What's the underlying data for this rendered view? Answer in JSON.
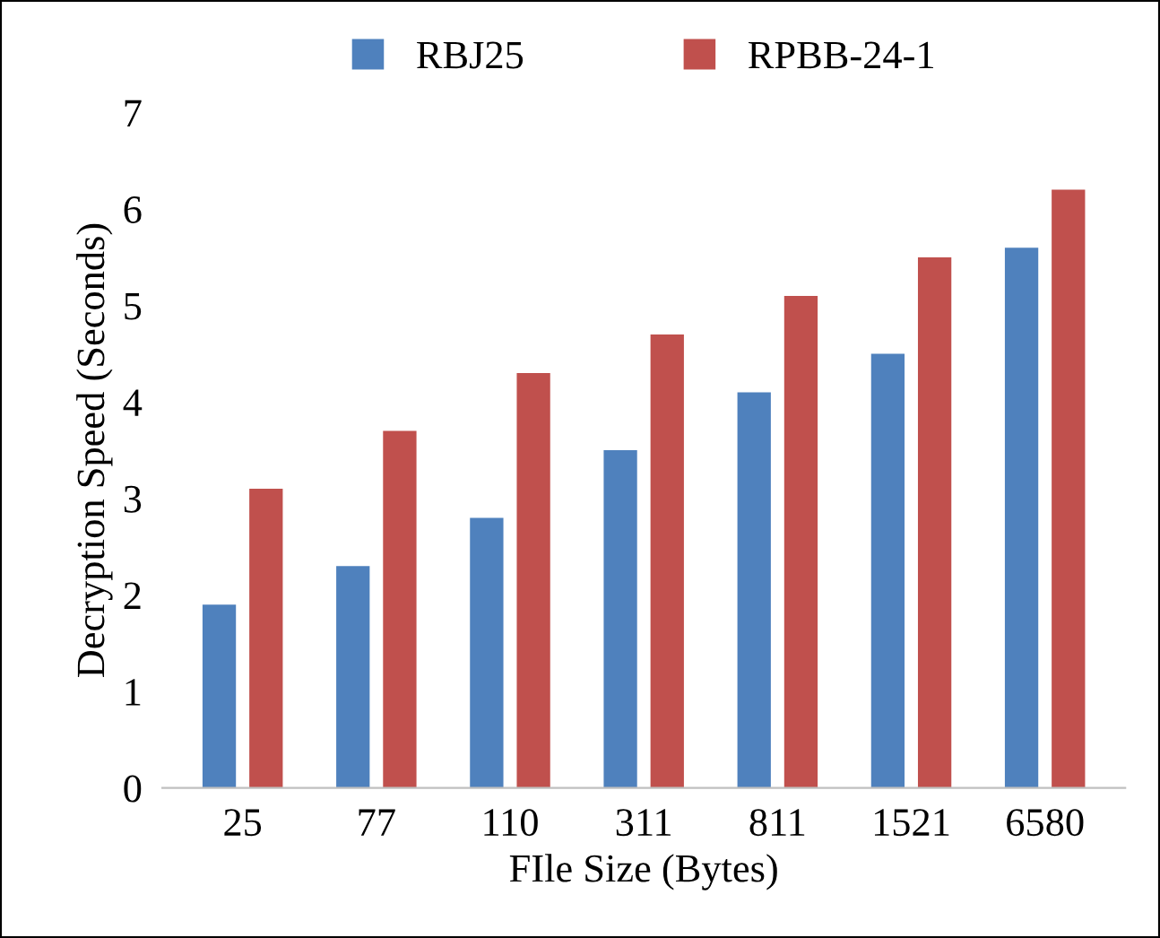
{
  "chart_data": {
    "type": "bar",
    "xlabel": "FIle Size (Bytes)",
    "ylabel": "Decryption Speed (Seconds)",
    "categories": [
      "25",
      "77",
      "110",
      "311",
      "811",
      "1521",
      "6580"
    ],
    "series": [
      {
        "name": "RBJ25",
        "color": "#4f81bd",
        "values": [
          1.9,
          2.3,
          2.8,
          3.5,
          4.1,
          4.5,
          5.6
        ]
      },
      {
        "name": "RPBB-24-1",
        "color": "#c0504d",
        "values": [
          3.1,
          3.7,
          4.3,
          4.7,
          5.1,
          5.5,
          6.2
        ]
      }
    ],
    "ylim": [
      0,
      7
    ],
    "yticks": [
      0,
      1,
      2,
      3,
      4,
      5,
      6,
      7
    ],
    "legend": "top",
    "grid": false
  }
}
